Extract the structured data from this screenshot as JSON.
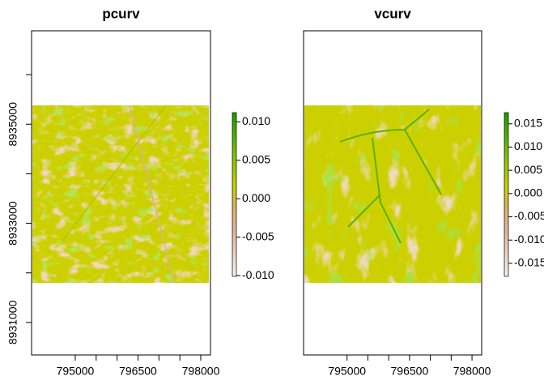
{
  "chart_data": [
    {
      "type": "raster",
      "title": "pcurv",
      "xlim": [
        793956,
        798232
      ],
      "ylim": [
        8930344,
        8936885
      ],
      "xticks": [
        795000,
        796500,
        798000
      ],
      "xticks_minor": [
        795500,
        796000,
        797000,
        797500
      ],
      "yticks": [
        8931000,
        8933000,
        8935000
      ],
      "yticks_minor": [
        8932000,
        8934000,
        8936000
      ],
      "legend": {
        "zlim": [
          -0.0101,
          0.0112
        ],
        "ticks": [
          {
            "value": 0.01,
            "label": "0.010"
          },
          {
            "value": 0.005,
            "label": "0.005"
          },
          {
            "value": 0,
            "label": "0.000"
          },
          {
            "value": -0.005,
            "label": "-0.005"
          },
          {
            "value": -0.01,
            "label": "-0.010"
          }
        ]
      }
    },
    {
      "type": "raster",
      "title": "vcurv",
      "xlim": [
        793956,
        798232
      ],
      "ylim": [
        8930344,
        8936885
      ],
      "xticks": [
        795000,
        796500,
        798000
      ],
      "xticks_minor": [
        795500,
        796000,
        797000,
        797500
      ],
      "legend": {
        "zlim": [
          -0.0178,
          0.0174
        ],
        "ticks": [
          {
            "value": 0.015,
            "label": "0.015"
          },
          {
            "value": 0.01,
            "label": "0.010"
          },
          {
            "value": 0.005,
            "label": "0.005"
          },
          {
            "value": 0,
            "label": "0.000"
          },
          {
            "value": -0.005,
            "label": "-0.005"
          },
          {
            "value": -0.01,
            "label": "-0.010"
          },
          {
            "value": -0.015,
            "label": "-0.015"
          }
        ]
      }
    }
  ]
}
